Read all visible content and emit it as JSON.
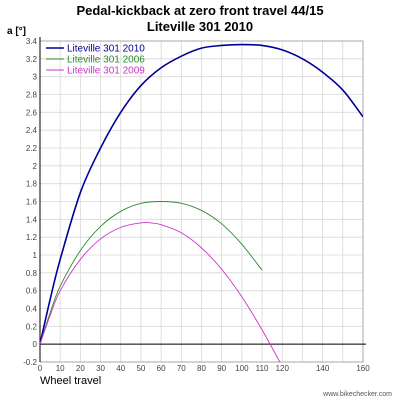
{
  "chart_data": {
    "type": "line",
    "title": "Pedal-kickback at zero front travel 44/15",
    "subtitle": "Liteville 301 2010",
    "xlabel": "Wheel travel",
    "ylabel": "a [°]",
    "xlim": [
      0,
      160
    ],
    "ylim": [
      -0.2,
      3.4
    ],
    "x_ticks": [
      "0",
      "10",
      "20",
      "30",
      "40",
      "50",
      "60",
      "70",
      "80",
      "90",
      "100",
      "110",
      "120",
      "130",
      "140",
      "150",
      "160"
    ],
    "x_tick_labels_shown": [
      "0",
      "10",
      "20",
      "30",
      "40",
      "50",
      "60",
      "70",
      "80",
      "90",
      "100",
      "110",
      "120",
      "140",
      "160"
    ],
    "y_ticks": [
      "-0.2",
      "0",
      "0.2",
      "0.4",
      "0.6",
      "0.8",
      "1",
      "1.2",
      "1.4",
      "1.6",
      "1.8",
      "2",
      "2.2",
      "2.4",
      "2.6",
      "2.8",
      "3",
      "3.2",
      "3.4"
    ],
    "legend_position": "top-left",
    "grid": true,
    "series": [
      {
        "name": "Liteville 301 2010",
        "color": "#000099",
        "x": [
          0,
          5,
          10,
          20,
          30,
          40,
          50,
          60,
          70,
          80,
          90,
          100,
          110,
          120,
          130,
          140,
          150,
          160
        ],
        "y": [
          0,
          0.5,
          0.95,
          1.7,
          2.2,
          2.6,
          2.9,
          3.1,
          3.23,
          3.32,
          3.35,
          3.36,
          3.35,
          3.3,
          3.2,
          3.05,
          2.85,
          2.55
        ]
      },
      {
        "name": "Liteville 301 2006",
        "color": "#2e8b2e",
        "x": [
          0,
          5,
          10,
          20,
          30,
          40,
          50,
          60,
          70,
          80,
          90,
          100,
          110
        ],
        "y": [
          0,
          0.35,
          0.65,
          1.05,
          1.32,
          1.49,
          1.58,
          1.6,
          1.58,
          1.5,
          1.35,
          1.12,
          0.83
        ]
      },
      {
        "name": "Liteville 301 2009",
        "color": "#cc33cc",
        "x": [
          0,
          5,
          10,
          20,
          30,
          40,
          50,
          55,
          60,
          70,
          80,
          90,
          100,
          110,
          120,
          127
        ],
        "y": [
          0,
          0.32,
          0.6,
          0.95,
          1.18,
          1.31,
          1.36,
          1.36,
          1.34,
          1.25,
          1.08,
          0.84,
          0.53,
          0.16,
          -0.25,
          -0.55
        ]
      }
    ]
  },
  "watermark": "www.bikechecker.com"
}
